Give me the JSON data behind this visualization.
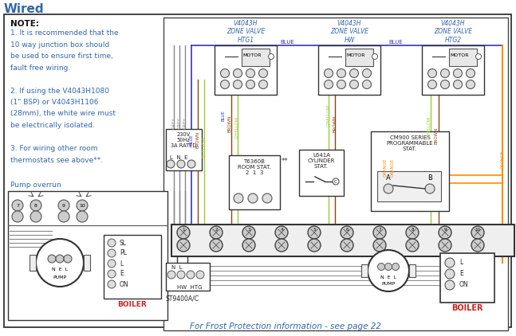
{
  "title": "Wired",
  "bg_color": "#ffffff",
  "border_color": "#333333",
  "frost_text": "For Frost Protection information - see page 22",
  "valve1_label": "V4043H\nZONE VALVE\nHTG1",
  "valve2_label": "V4043H\nZONE VALVE\nHW",
  "valve3_label": "V4043H\nZONE VALVE\nHTG2",
  "power_label": "230V\n50Hz\n3A RATED",
  "lne_label": "L  N  E",
  "room_stat_label": "T6360B\nROOM STAT.\n2  1  3",
  "cyl_stat_label": "L641A\nCYLINDER\nSTAT.",
  "cm900_label": "CM900 SERIES\nPROGRAMMABLE\nSTAT.",
  "st9400_label": "ST9400A/C",
  "hw_htg_label": "HW HTG",
  "boiler_label": "BOILER",
  "pump_label": "PUMP",
  "grey": "#888888",
  "blue": "#3333bb",
  "brown": "#8B4513",
  "gyellow": "#9acd32",
  "orange": "#FF8C00",
  "black": "#222222",
  "label_blue": "#3366aa",
  "frost_color": "#3366aa",
  "note_color": "#3366aa",
  "red_bold": "#cc2222"
}
